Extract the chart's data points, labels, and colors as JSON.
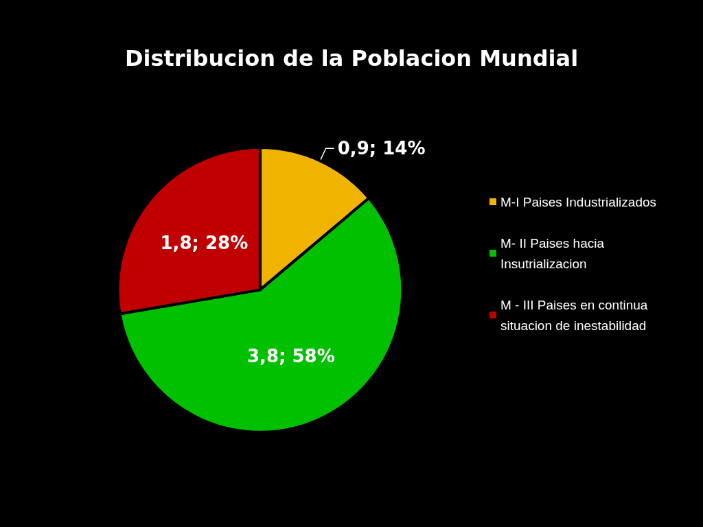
{
  "chart_data": {
    "type": "pie",
    "title": "Distribucion de la Poblacion Mundial",
    "categories": [
      "M-I Paises Industrializados",
      "M- II Paises hacia Insutrializacion",
      "M - III Paises en continua situacion de inestabilidad"
    ],
    "values": [
      0.9,
      3.8,
      1.8
    ],
    "colors": [
      "#f0b400",
      "#00c000",
      "#c00000"
    ],
    "value_labels": [
      "0,9; 14%",
      "3,8; 58%",
      "1,8; 28%"
    ],
    "legend": "right"
  }
}
